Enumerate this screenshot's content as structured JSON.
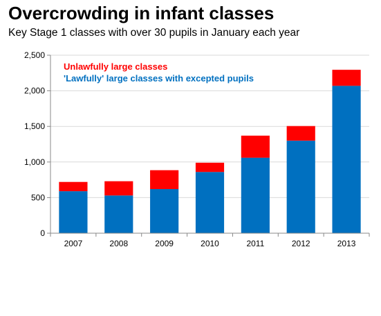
{
  "chart_data": {
    "type": "bar",
    "stacked": true,
    "title": "Overcrowding in infant classes",
    "subtitle": "Key Stage 1 classes with over 30 pupils in January each year",
    "categories": [
      "2007",
      "2008",
      "2009",
      "2010",
      "2011",
      "2012",
      "2013"
    ],
    "series": [
      {
        "name": "'Lawfully' large classes with excepted pupils",
        "color": "#0070c0",
        "values": [
          590,
          530,
          620,
          860,
          1060,
          1300,
          2070
        ]
      },
      {
        "name": "Unlawfully large classes",
        "color": "#ff0000",
        "values": [
          130,
          200,
          265,
          130,
          310,
          205,
          225
        ]
      }
    ],
    "ylim": [
      0,
      2500
    ],
    "yticks": [
      0,
      500,
      1000,
      1500,
      2000,
      2500
    ],
    "ytick_labels": [
      "0",
      "500",
      "1,000",
      "1,500",
      "2,000",
      "2,500"
    ],
    "grid": true,
    "legend_position": "top-left"
  }
}
